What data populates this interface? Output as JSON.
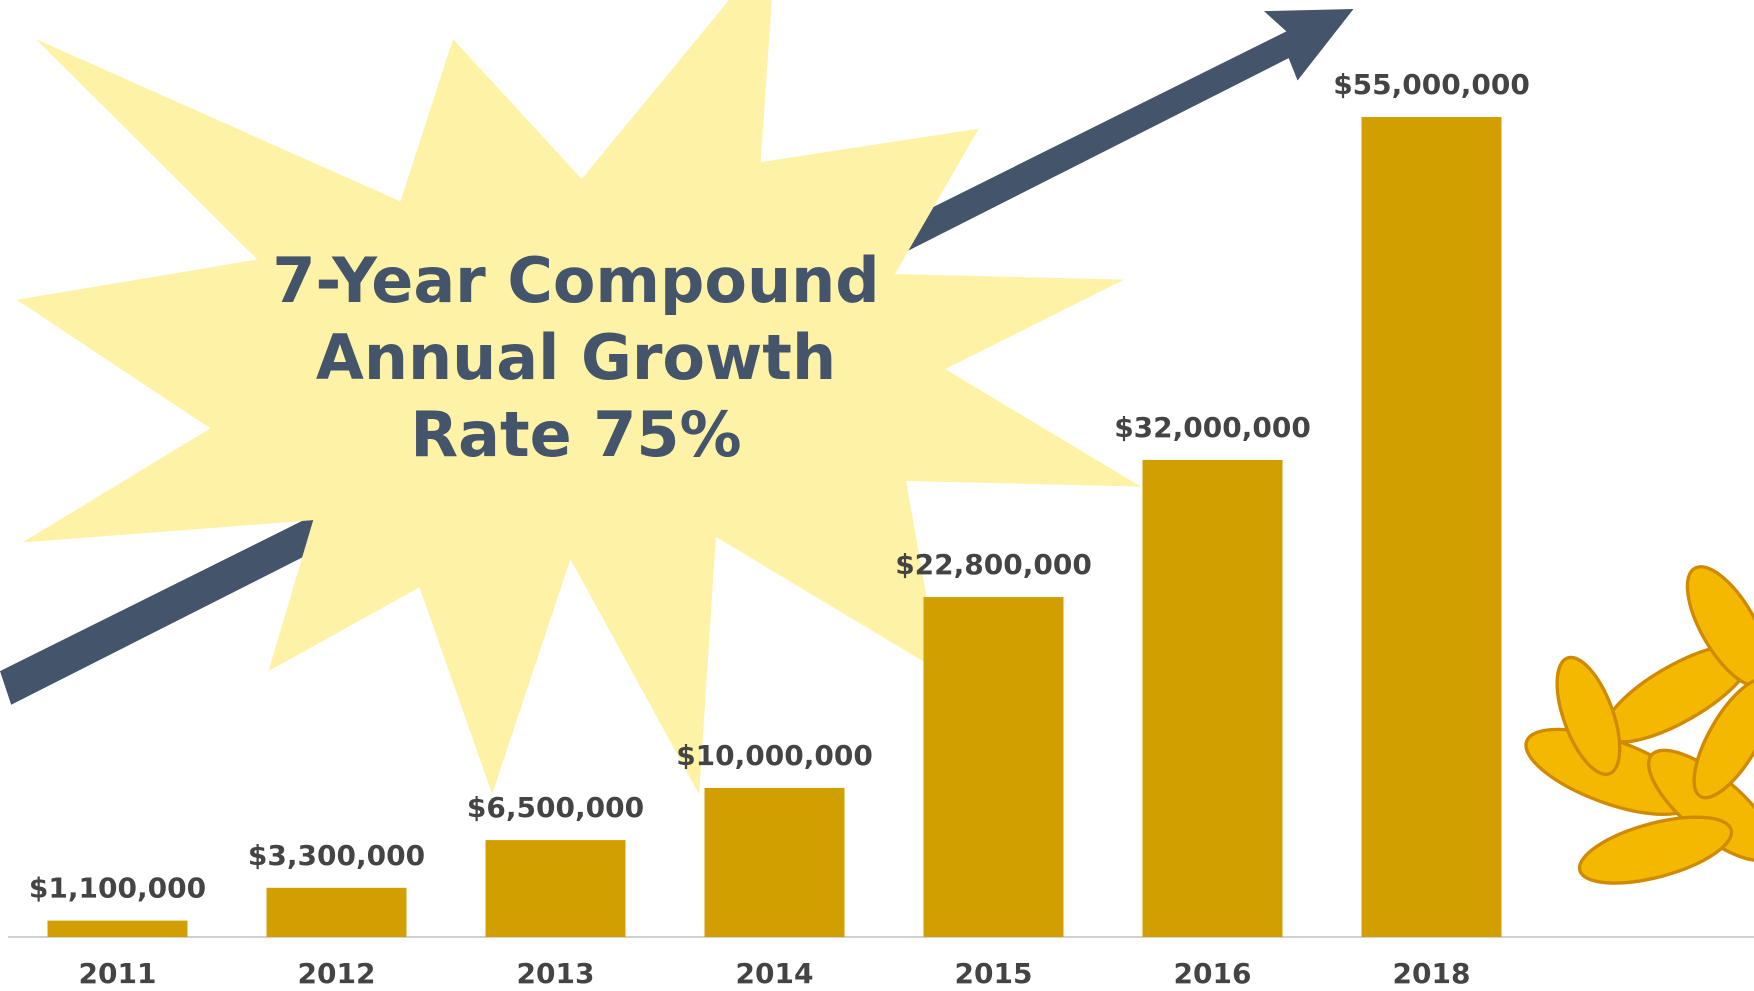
{
  "chart_data": {
    "type": "bar",
    "annotation": [
      "7-Year Compound",
      "Annual Growth",
      "Rate 75%"
    ],
    "categories": [
      "2011",
      "2012",
      "2013",
      "2014",
      "2015",
      "2016",
      "2018"
    ],
    "values": [
      1100000,
      3300000,
      6500000,
      10000000,
      22800000,
      32000000,
      55000000
    ],
    "value_labels": [
      "$1,100,000",
      "$3,300,000",
      "$6,500,000",
      "$10,000,000",
      "$22,800,000",
      "$32,000,000",
      "$55,000,000"
    ],
    "color": "#d1a000",
    "ylim": [
      0,
      55000000
    ]
  }
}
